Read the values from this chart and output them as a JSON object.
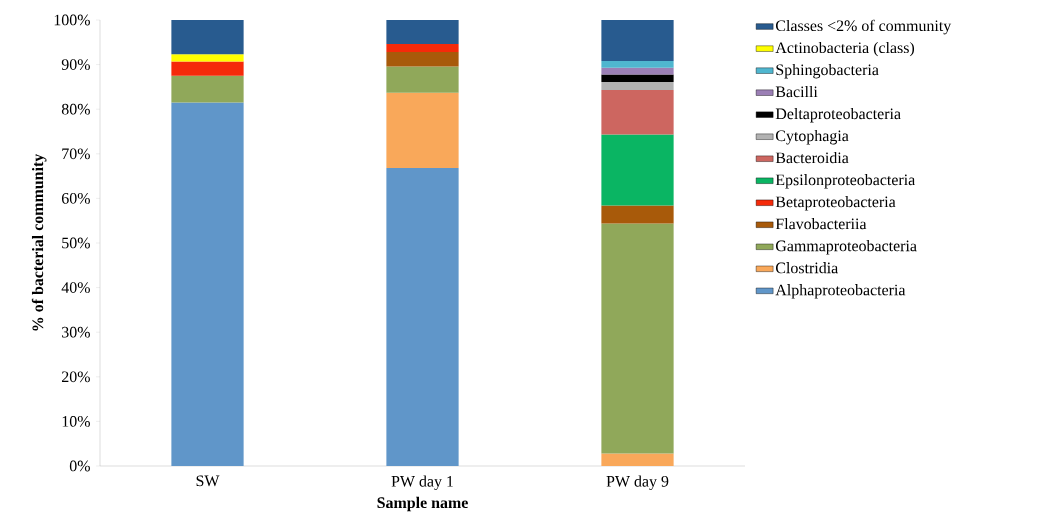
{
  "chart_data": {
    "type": "bar",
    "stacked": true,
    "xlabel": "Sample name",
    "ylabel": "% of bacterial community",
    "categories": [
      "SW",
      "PW day 1",
      "PW day 9"
    ],
    "series": [
      {
        "name": "Alphaproteobacteria",
        "color": "#6096c9",
        "values": [
          81.5,
          66.8,
          null
        ]
      },
      {
        "name": "Clostridia",
        "color": "#f9a85a",
        "values": [
          null,
          16.9,
          2.8
        ]
      },
      {
        "name": "Gammaproteobacteria",
        "color": "#90a85a",
        "values": [
          6.0,
          5.9,
          51.6
        ]
      },
      {
        "name": "Flavobacteriia",
        "color": "#a85a0a",
        "values": [
          null,
          3.2,
          4.0
        ]
      },
      {
        "name": "Betaproteobacteria",
        "color": "#f52a0a",
        "values": [
          3.2,
          1.8,
          null
        ]
      },
      {
        "name": "Epsilonproteobacteria",
        "color": "#0ab563",
        "values": [
          null,
          null,
          15.9
        ]
      },
      {
        "name": "Bacteroidia",
        "color": "#cd6660",
        "values": [
          null,
          null,
          10.0
        ]
      },
      {
        "name": "Cytophagia",
        "color": "#b2b2b2",
        "values": [
          null,
          null,
          1.8
        ]
      },
      {
        "name": "Deltaproteobacteria",
        "color": "#000000",
        "values": [
          null,
          null,
          1.7
        ]
      },
      {
        "name": "Bacilli",
        "color": "#9b7fb5",
        "values": [
          null,
          null,
          1.5
        ]
      },
      {
        "name": "Sphingobacteria",
        "color": "#4fb6cf",
        "values": [
          null,
          null,
          1.5
        ]
      },
      {
        "name": "Actinobacteria (class)",
        "color": "#ffff00",
        "values": [
          1.6,
          null,
          null
        ]
      },
      {
        "name": "Classes <2% of community",
        "color": "#285b8f",
        "values": [
          7.7,
          5.4,
          9.2
        ]
      }
    ],
    "ylim": [
      0,
      100
    ],
    "yticks": [
      {
        "value": 0,
        "label": "0%"
      },
      {
        "value": 10,
        "label": "10%"
      },
      {
        "value": 20,
        "label": "20%"
      },
      {
        "value": 30,
        "label": "30%"
      },
      {
        "value": 40,
        "label": "40%"
      },
      {
        "value": 50,
        "label": "50%"
      },
      {
        "value": 60,
        "label": "60%"
      },
      {
        "value": 70,
        "label": "70%"
      },
      {
        "value": 80,
        "label": "80%"
      },
      {
        "value": 90,
        "label": "90%"
      },
      {
        "value": 100,
        "label": "100%"
      }
    ],
    "legend": "right",
    "grid": false
  }
}
